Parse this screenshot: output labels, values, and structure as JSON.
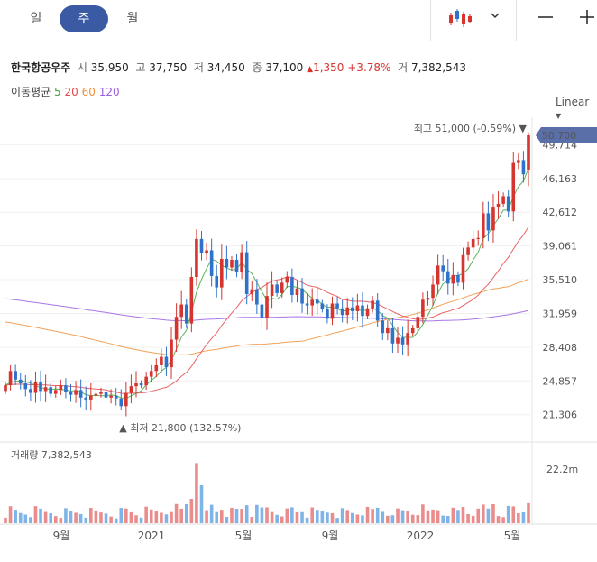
{
  "tabs": [
    {
      "label": "일",
      "selected": false
    },
    {
      "label": "주",
      "selected": true
    },
    {
      "label": "월",
      "selected": false
    }
  ],
  "toolbar": {
    "chart_type_icon": "candlestick-icon",
    "dropdown_icon": "chevron-down-icon",
    "minus_icon": "minus-icon",
    "plus_icon": "plus-icon"
  },
  "stock": {
    "name": "한국항공우주",
    "open_label": "시",
    "open": "35,950",
    "high_label": "고",
    "high": "37,750",
    "low_label": "저",
    "low": "34,450",
    "close_label": "종",
    "close": "37,100",
    "change": "1,350",
    "change_pct": "+3.78%",
    "volume_label": "거",
    "volume": "7,382,543"
  },
  "moving_average": {
    "label": "이동평균",
    "periods": [
      {
        "value": "5",
        "color": "#3fa33f"
      },
      {
        "value": "20",
        "color": "#e8464a"
      },
      {
        "value": "60",
        "color": "#f0903c"
      },
      {
        "value": "120",
        "color": "#9a5ee0"
      }
    ]
  },
  "scale_mode": "Linear",
  "colors": {
    "up": "#d6342e",
    "down": "#2e72c9",
    "up_volume": "#eb8c8c",
    "down_volume": "#7fb4e8",
    "accent": "#5a6fa8"
  },
  "chart_data": {
    "type": "candlestick",
    "price_axis_ticks": [
      "49,714",
      "46,163",
      "42,612",
      "39,061",
      "35,510",
      "31,959",
      "28,408",
      "24,857",
      "21,306"
    ],
    "x_tick_labels": [
      "9월",
      "2021",
      "5월",
      "9월",
      "2022",
      "5월"
    ],
    "current_price_label": "50,700",
    "high_marker_label": "최고 51,000 (-0.59%)",
    "low_marker_label": "최저 21,800 (132.57%)",
    "volume_title": "거래량",
    "volume_value": "7,382,543",
    "volume_axis_label": "22.2m",
    "price_range": [
      19000,
      52600
    ],
    "volume_max": 24000000,
    "ma_periods": [
      5,
      20,
      60,
      120
    ],
    "ma120_start": [
      34500,
      33900,
      33300,
      32600
    ],
    "ma60_start": [
      32000,
      31500,
      30900,
      30200
    ],
    "closes": [
      24400,
      25900,
      25000,
      24600,
      24000,
      23600,
      24700,
      23800,
      24200,
      23500,
      23900,
      24400,
      23700,
      23400,
      23900,
      23100,
      22900,
      23300,
      23500,
      23700,
      23100,
      23300,
      23000,
      22200,
      23600,
      24300,
      24600,
      24400,
      25300,
      25900,
      26500,
      27400,
      26300,
      29200,
      31600,
      32900,
      30900,
      35800,
      39800,
      38300,
      38600,
      35900,
      34700,
      37700,
      36800,
      37600,
      36300,
      38400,
      34000,
      34500,
      32900,
      31500,
      33800,
      35000,
      34100,
      35200,
      35800,
      33900,
      34600,
      33000,
      32800,
      33400,
      33000,
      32400,
      31400,
      33000,
      32500,
      31800,
      32600,
      32200,
      32800,
      31700,
      32500,
      33300,
      31200,
      29900,
      30400,
      28800,
      29400,
      28700,
      29900,
      30400,
      31600,
      33400,
      33600,
      35000,
      37000,
      36400,
      35100,
      36000,
      35200,
      38100,
      38900,
      39800,
      39900,
      42500,
      40700,
      43100,
      43500,
      44300,
      42700,
      47800,
      48100,
      46600,
      50700
    ]
  }
}
